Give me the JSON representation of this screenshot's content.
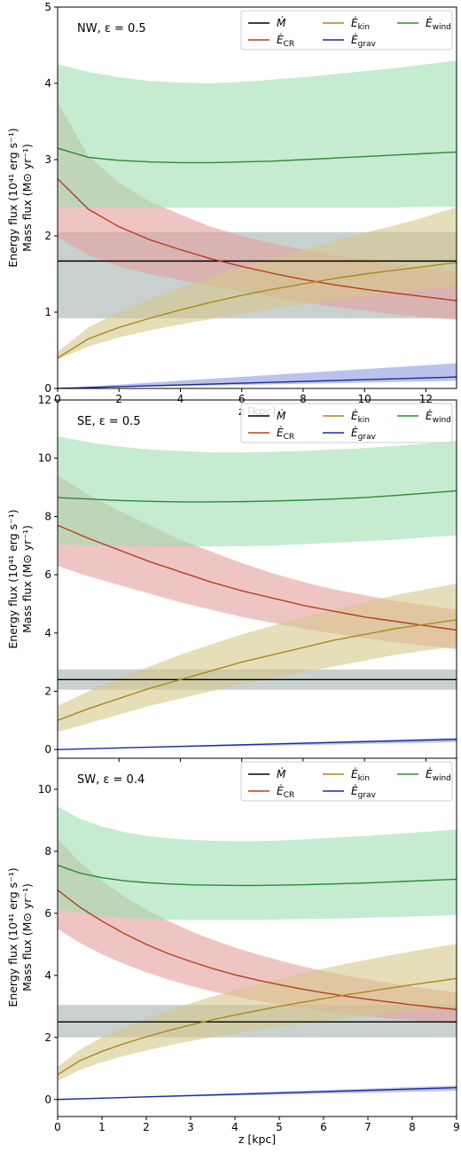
{
  "chart_data": [
    {
      "type": "line",
      "annotation": "NW, ε = 0.5",
      "ylabel_lines": [
        "Energy flux (10⁴¹ erg s⁻¹)",
        "Mass flux (M⊙ yr⁻¹)"
      ],
      "xlabel": "z [kpc]",
      "xlim": [
        0,
        13
      ],
      "ylim": [
        0,
        5
      ],
      "xticks": [
        0,
        2,
        4,
        6,
        8,
        10,
        12
      ],
      "yticks": [
        0,
        1,
        2,
        3,
        4,
        5
      ],
      "legend": [
        "Ṁ",
        "Ė_CR",
        "Ė_kin",
        "Ė_grav",
        "Ė_wind"
      ],
      "legend_position": "top-right",
      "series": [
        {
          "name": "Ṁ",
          "color": "#000000",
          "x": [
            0,
            13
          ],
          "y": [
            1.67,
            1.67
          ],
          "lower": [
            0.92,
            0.92
          ],
          "upper": [
            2.05,
            2.05
          ],
          "band_color": "#a3b2b0"
        },
        {
          "name": "Ė_CR",
          "color": "#b5401f",
          "x": [
            0,
            1,
            2,
            3,
            4,
            5,
            6,
            7,
            8,
            9,
            10,
            11,
            12,
            13
          ],
          "y": [
            2.75,
            2.35,
            2.12,
            1.95,
            1.82,
            1.7,
            1.6,
            1.51,
            1.43,
            1.36,
            1.3,
            1.25,
            1.2,
            1.15
          ],
          "lower": [
            1.98,
            1.75,
            1.6,
            1.5,
            1.42,
            1.34,
            1.27,
            1.2,
            1.13,
            1.07,
            1.02,
            0.97,
            0.93,
            0.9
          ],
          "upper": [
            3.75,
            3.05,
            2.7,
            2.45,
            2.28,
            2.12,
            2.0,
            1.9,
            1.82,
            1.75,
            1.69,
            1.63,
            1.58,
            1.53
          ],
          "band_color": "#e59f9d"
        },
        {
          "name": "Ė_kin",
          "color": "#a88a1c",
          "x": [
            0,
            1,
            2,
            3,
            4,
            5,
            6,
            7,
            8,
            9,
            10,
            11,
            12,
            13
          ],
          "y": [
            0.4,
            0.65,
            0.8,
            0.92,
            1.03,
            1.13,
            1.22,
            1.3,
            1.37,
            1.44,
            1.5,
            1.55,
            1.6,
            1.65
          ],
          "lower": [
            0.38,
            0.55,
            0.67,
            0.76,
            0.84,
            0.91,
            0.98,
            1.04,
            1.1,
            1.16,
            1.21,
            1.26,
            1.3,
            1.34
          ],
          "upper": [
            0.48,
            0.8,
            1.0,
            1.17,
            1.32,
            1.46,
            1.59,
            1.71,
            1.82,
            1.93,
            2.04,
            2.14,
            2.25,
            2.38
          ],
          "band_color": "#d6c78a"
        },
        {
          "name": "Ė_grav",
          "color": "#1a2aa0",
          "x": [
            0,
            13
          ],
          "y": [
            0.0,
            0.15
          ],
          "lower": [
            0.0,
            0.1
          ],
          "upper": [
            0.0,
            0.33
          ],
          "band_color": "#8a9be0"
        },
        {
          "name": "Ė_wind",
          "color": "#2b8a3a",
          "x": [
            0,
            1,
            2,
            3,
            4,
            5,
            6,
            7,
            8,
            9,
            10,
            11,
            12,
            13
          ],
          "y": [
            3.15,
            3.03,
            2.99,
            2.97,
            2.96,
            2.96,
            2.97,
            2.98,
            3.0,
            3.02,
            3.04,
            3.06,
            3.08,
            3.1
          ],
          "lower": [
            2.38,
            2.37,
            2.37,
            2.37,
            2.37,
            2.37,
            2.37,
            2.37,
            2.37,
            2.37,
            2.37,
            2.37,
            2.38,
            2.38
          ],
          "upper": [
            4.25,
            4.15,
            4.08,
            4.03,
            4.01,
            4.0,
            4.02,
            4.05,
            4.08,
            4.12,
            4.16,
            4.2,
            4.25,
            4.3
          ],
          "band_color": "#9fe0b0"
        }
      ]
    },
    {
      "type": "line",
      "annotation": "SE, ε = 0.5",
      "ylabel_lines": [
        "Energy flux (10⁴¹ erg s⁻¹)",
        "Mass flux (M⊙ yr⁻¹)"
      ],
      "xlabel": "",
      "xlim": [
        0,
        13
      ],
      "ylim": [
        -0.3,
        12
      ],
      "xticks": [
        0,
        2,
        4,
        6,
        8,
        10,
        12
      ],
      "yticks": [
        0,
        2,
        4,
        6,
        8,
        10,
        12
      ],
      "legend": [
        "Ṁ",
        "Ė_CR",
        "Ė_kin",
        "Ė_grav",
        "Ė_wind"
      ],
      "legend_position": "top-right",
      "series": [
        {
          "name": "Ṁ",
          "color": "#000000",
          "x": [
            0,
            13
          ],
          "y": [
            2.4,
            2.4
          ],
          "lower": [
            2.05,
            2.05
          ],
          "upper": [
            2.75,
            2.75
          ],
          "band_color": "#a3b2b0"
        },
        {
          "name": "Ė_CR",
          "color": "#b5401f",
          "x": [
            0,
            1,
            2,
            3,
            4,
            5,
            6,
            7,
            8,
            9,
            10,
            11,
            12,
            13
          ],
          "y": [
            7.7,
            7.25,
            6.85,
            6.45,
            6.1,
            5.75,
            5.45,
            5.2,
            4.95,
            4.75,
            4.55,
            4.4,
            4.25,
            4.1
          ],
          "lower": [
            6.3,
            5.95,
            5.65,
            5.35,
            5.05,
            4.8,
            4.55,
            4.35,
            4.15,
            3.98,
            3.82,
            3.68,
            3.56,
            3.45
          ],
          "upper": [
            9.4,
            8.75,
            8.2,
            7.7,
            7.2,
            6.8,
            6.4,
            6.05,
            5.75,
            5.5,
            5.3,
            5.1,
            4.95,
            4.8
          ],
          "band_color": "#e59f9d"
        },
        {
          "name": "Ė_kin",
          "color": "#a88a1c",
          "x": [
            0,
            1,
            2,
            3,
            4,
            5,
            6,
            7,
            8,
            9,
            10,
            11,
            12,
            13
          ],
          "y": [
            1.0,
            1.4,
            1.75,
            2.1,
            2.4,
            2.7,
            3.0,
            3.25,
            3.5,
            3.75,
            3.95,
            4.15,
            4.3,
            4.45
          ],
          "lower": [
            0.6,
            0.9,
            1.2,
            1.5,
            1.75,
            2.0,
            2.25,
            2.45,
            2.65,
            2.85,
            3.05,
            3.25,
            3.4,
            3.55
          ],
          "upper": [
            1.5,
            2.0,
            2.45,
            2.85,
            3.25,
            3.6,
            3.95,
            4.25,
            4.55,
            4.8,
            5.05,
            5.3,
            5.5,
            5.7
          ],
          "band_color": "#d6c78a"
        },
        {
          "name": "Ė_grav",
          "color": "#1a2aa0",
          "x": [
            0,
            13
          ],
          "y": [
            0.0,
            0.35
          ],
          "lower": [
            0.0,
            0.25
          ],
          "upper": [
            0.0,
            0.4
          ],
          "band_color": "#8a9be0"
        },
        {
          "name": "Ė_wind",
          "color": "#2b8a3a",
          "x": [
            0,
            1,
            2,
            3,
            4,
            5,
            6,
            7,
            8,
            9,
            10,
            11,
            12,
            13
          ],
          "y": [
            8.65,
            8.6,
            8.55,
            8.52,
            8.5,
            8.5,
            8.51,
            8.53,
            8.56,
            8.6,
            8.65,
            8.72,
            8.8,
            8.88
          ],
          "lower": [
            7.05,
            7.0,
            6.98,
            6.97,
            6.97,
            6.97,
            6.98,
            7.0,
            7.05,
            7.1,
            7.15,
            7.2,
            7.28,
            7.35
          ],
          "upper": [
            10.75,
            10.55,
            10.4,
            10.3,
            10.25,
            10.2,
            10.2,
            10.22,
            10.25,
            10.3,
            10.35,
            10.42,
            10.5,
            10.6
          ],
          "band_color": "#9fe0b0"
        }
      ]
    },
    {
      "type": "line",
      "annotation": "SW, ε = 0.4",
      "ylabel_lines": [
        "Energy flux (10⁴¹ erg s⁻¹)",
        "Mass flux (M⊙ yr⁻¹)"
      ],
      "xlabel": "z [kpc]",
      "xlim": [
        0,
        9
      ],
      "ylim": [
        -0.55,
        11
      ],
      "xticks": [
        0,
        1,
        2,
        3,
        4,
        5,
        6,
        7,
        8,
        9
      ],
      "yticks": [
        0,
        2,
        4,
        6,
        8,
        10
      ],
      "legend": [
        "Ṁ",
        "Ė_CR",
        "Ė_kin",
        "Ė_grav",
        "Ė_wind"
      ],
      "legend_position": "top-right",
      "series": [
        {
          "name": "Ṁ",
          "color": "#000000",
          "x": [
            0,
            9
          ],
          "y": [
            2.5,
            2.5
          ],
          "lower": [
            2.0,
            2.0
          ],
          "upper": [
            3.05,
            3.05
          ],
          "band_color": "#a3b2b0"
        },
        {
          "name": "Ė_CR",
          "color": "#b5401f",
          "x": [
            0,
            0.5,
            1,
            1.5,
            2,
            2.5,
            3,
            3.5,
            4,
            4.5,
            5,
            5.5,
            6,
            6.5,
            7,
            7.5,
            8,
            8.5,
            9
          ],
          "y": [
            6.75,
            6.2,
            5.75,
            5.35,
            5.0,
            4.7,
            4.45,
            4.22,
            4.02,
            3.85,
            3.7,
            3.56,
            3.44,
            3.33,
            3.23,
            3.14,
            3.05,
            2.97,
            2.9
          ],
          "lower": [
            5.5,
            5.05,
            4.68,
            4.37,
            4.1,
            3.86,
            3.66,
            3.48,
            3.32,
            3.18,
            3.06,
            2.95,
            2.85,
            2.76,
            2.68,
            2.61,
            2.55,
            2.49,
            2.44
          ],
          "upper": [
            8.4,
            7.65,
            7.05,
            6.55,
            6.12,
            5.75,
            5.43,
            5.15,
            4.9,
            4.68,
            4.48,
            4.3,
            4.14,
            4.0,
            3.87,
            3.75,
            3.64,
            3.54,
            3.45
          ],
          "band_color": "#e59f9d"
        },
        {
          "name": "Ė_kin",
          "color": "#a88a1c",
          "x": [
            0,
            0.5,
            1,
            1.5,
            2,
            2.5,
            3,
            3.5,
            4,
            4.5,
            5,
            5.5,
            6,
            6.5,
            7,
            7.5,
            8,
            8.5,
            9
          ],
          "y": [
            0.8,
            1.25,
            1.55,
            1.8,
            2.02,
            2.22,
            2.4,
            2.57,
            2.72,
            2.86,
            3.0,
            3.13,
            3.25,
            3.37,
            3.48,
            3.59,
            3.7,
            3.8,
            3.9
          ],
          "lower": [
            0.6,
            0.95,
            1.2,
            1.4,
            1.58,
            1.74,
            1.88,
            2.01,
            2.13,
            2.24,
            2.34,
            2.44,
            2.53,
            2.62,
            2.7,
            2.78,
            2.86,
            2.93,
            3.0
          ],
          "upper": [
            1.05,
            1.6,
            2.0,
            2.32,
            2.6,
            2.86,
            3.1,
            3.32,
            3.52,
            3.71,
            3.89,
            4.06,
            4.22,
            4.37,
            4.51,
            4.65,
            4.78,
            4.9,
            5.02
          ],
          "band_color": "#d6c78a"
        },
        {
          "name": "Ė_grav",
          "color": "#1a2aa0",
          "x": [
            0,
            9
          ],
          "y": [
            0.0,
            0.38
          ],
          "lower": [
            0.0,
            0.28
          ],
          "upper": [
            0.0,
            0.45
          ],
          "band_color": "#8a9be0"
        },
        {
          "name": "Ė_wind",
          "color": "#2b8a3a",
          "x": [
            0,
            0.5,
            1,
            1.5,
            2,
            2.5,
            3,
            3.5,
            4,
            4.5,
            5,
            5.5,
            6,
            6.5,
            7,
            7.5,
            8,
            8.5,
            9
          ],
          "y": [
            7.55,
            7.3,
            7.15,
            7.05,
            6.99,
            6.95,
            6.92,
            6.91,
            6.9,
            6.9,
            6.91,
            6.92,
            6.94,
            6.96,
            6.98,
            7.01,
            7.04,
            7.07,
            7.1
          ],
          "lower": [
            6.15,
            6.0,
            5.9,
            5.85,
            5.82,
            5.8,
            5.79,
            5.79,
            5.79,
            5.79,
            5.8,
            5.81,
            5.82,
            5.84,
            5.86,
            5.88,
            5.9,
            5.92,
            5.95
          ],
          "upper": [
            9.45,
            9.05,
            8.8,
            8.62,
            8.5,
            8.42,
            8.37,
            8.34,
            8.33,
            8.33,
            8.35,
            8.38,
            8.42,
            8.46,
            8.5,
            8.55,
            8.6,
            8.65,
            8.7
          ],
          "band_color": "#9fe0b0"
        }
      ]
    }
  ]
}
